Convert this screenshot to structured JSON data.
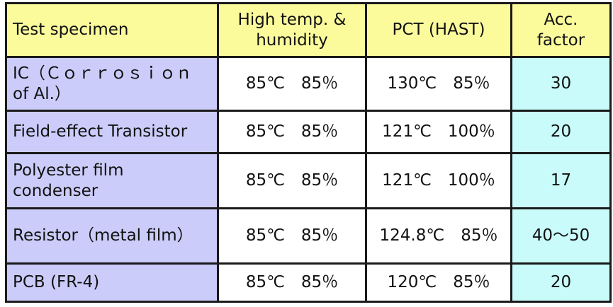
{
  "headers": [
    "Test specimen",
    "High temp. & humidity",
    "PCT (HAST)",
    "Acc. factor"
  ],
  "rows": [
    {
      "specimen": "IC（Ｃｏｒｒｏｓｉｏｎ of Al.）",
      "high_temp_humidity": "85℃　85％",
      "pct_hast": "130℃　85％",
      "acc_factor": "30"
    },
    {
      "specimen": "Field-effect Transistor",
      "high_temp_humidity": "85℃　85％",
      "pct_hast": "121℃　100％",
      "acc_factor": "20"
    },
    {
      "specimen": "Polyester film condenser",
      "high_temp_humidity": "85℃　85％",
      "pct_hast": "121℃　100％",
      "acc_factor": "17"
    },
    {
      "specimen": "Resistor（metal film）",
      "high_temp_humidity": "85℃　85％",
      "pct_hast": "124.8℃　85％",
      "acc_factor": "40～50"
    },
    {
      "specimen": "PCB (FR-4)",
      "high_temp_humidity": "85℃　85％",
      "pct_hast": "120℃　85％",
      "acc_factor": "20"
    }
  ],
  "colors": {
    "header_bg": "#fbfb9c",
    "specimen_bg": "#ccccfa",
    "factor_bg": "#c9fbfb",
    "border": "#1a1a1a"
  }
}
